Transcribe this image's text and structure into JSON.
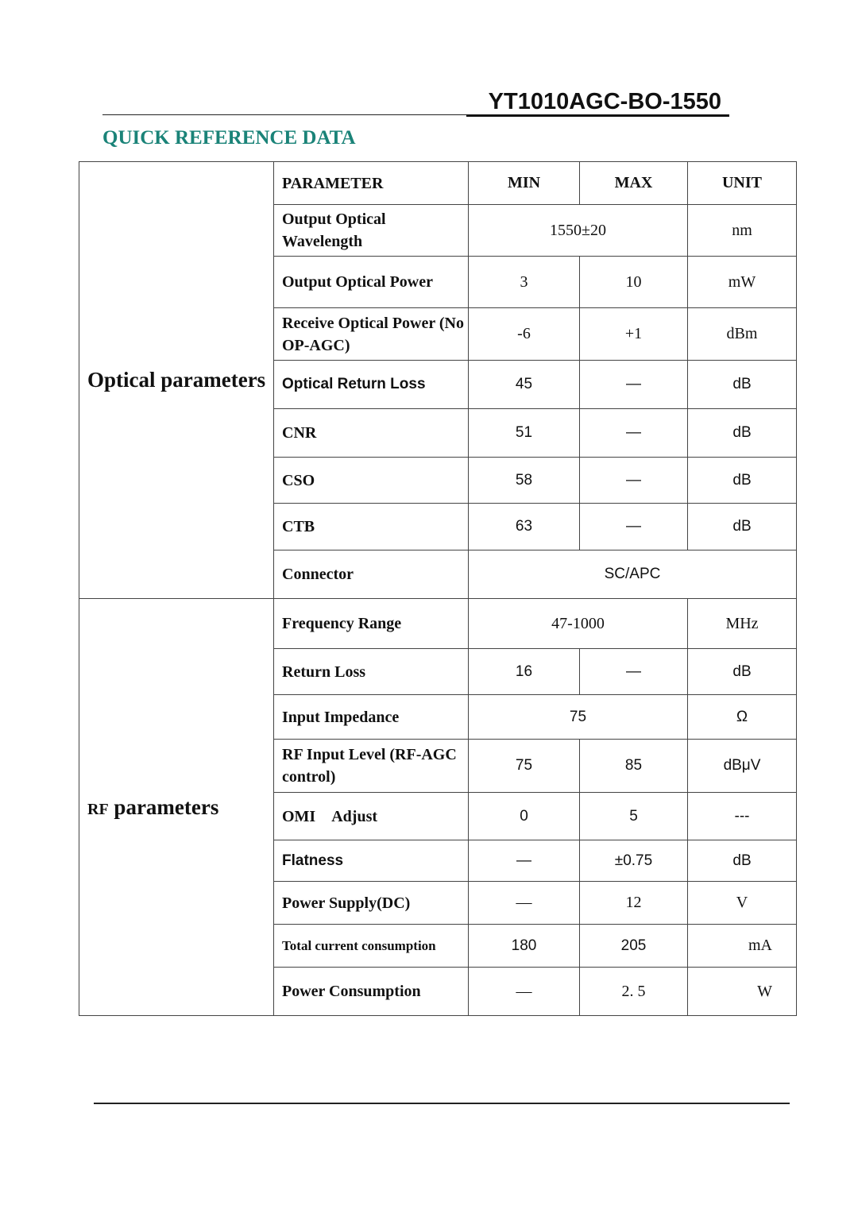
{
  "header": {
    "model": "YT1010AGC-BO-1550"
  },
  "section_title": "QUICK REFERENCE DATA",
  "table": {
    "columns": [
      "PARAMETER",
      "MIN",
      "MAX",
      "UNIT"
    ],
    "groups": [
      {
        "label": "Optical parameters",
        "rows": [
          {
            "param": "Output Optical Wavelength",
            "merged": "1550±20",
            "unit": "nm"
          },
          {
            "param": "Output Optical Power",
            "min": "3",
            "max": "10",
            "unit": "mW"
          },
          {
            "param": "Receive Optical Power (No OP-AGC)",
            "min": "-6",
            "max": "+1",
            "unit": "dBm"
          },
          {
            "param": "Optical Return Loss",
            "min": "45",
            "max": "—",
            "unit": "dB"
          },
          {
            "param": "CNR",
            "min": "51",
            "max": "—",
            "unit": "dB"
          },
          {
            "param": "CSO",
            "min": "58",
            "max": "—",
            "unit": "dB"
          },
          {
            "param": "CTB",
            "min": "63",
            "max": "—",
            "unit": "dB"
          },
          {
            "param": "Connector",
            "full": "SC/APC"
          }
        ]
      },
      {
        "label_prefix": "RF",
        "label": " parameters",
        "rows": [
          {
            "param": "Frequency Range",
            "merged": "47-1000",
            "unit": "MHz"
          },
          {
            "param": "Return Loss",
            "min": "16",
            "max": "—",
            "unit": "dB"
          },
          {
            "param": "Input Impedance",
            "merged": "75",
            "unit": "Ω"
          },
          {
            "param": "RF Input Level (RF-AGC control)",
            "min": "75",
            "max": "85",
            "unit": "dBμV"
          },
          {
            "param": "OMI　Adjust",
            "min": "0",
            "max": "5",
            "unit": "---"
          },
          {
            "param": "Flatness",
            "min": "—",
            "max": "±0.75",
            "unit": "dB"
          },
          {
            "param": "Power Supply(DC)",
            "min": "—",
            "max": "12",
            "unit": "V"
          },
          {
            "param": "Total current consumption",
            "min": "180",
            "max": "205",
            "unit": "mA"
          },
          {
            "param": "Power Consumption",
            "min": "—",
            "max": "2. 5",
            "unit": "W"
          }
        ]
      }
    ]
  }
}
